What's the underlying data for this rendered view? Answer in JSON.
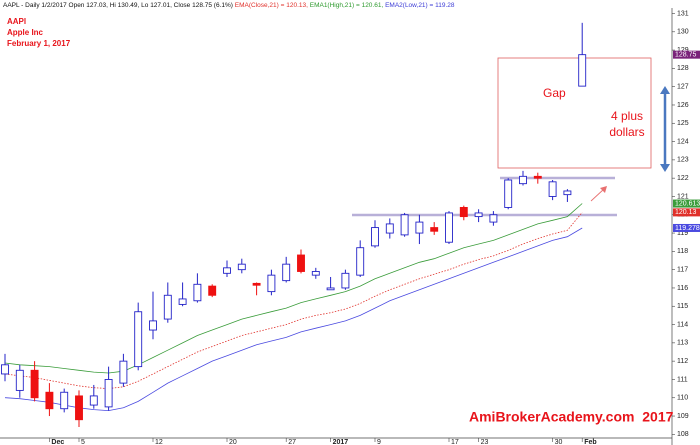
{
  "chart_data": {
    "type": "candlestick",
    "header": [
      {
        "text": "AAPL - Daily 1/2/2017 Open 127.03, Hi 130.49, Lo 127.01, Close 128.75 (6.1%) ",
        "color": "#111111"
      },
      {
        "text": "EMA(Close,21) = 120.13, ",
        "color": "#e0302a"
      },
      {
        "text": "EMA1(High,21) = 120.61, ",
        "color": "#2e9a2e"
      },
      {
        "text": "EMA2(Low,21) = 119.28",
        "color": "#3b3bd6"
      }
    ],
    "annotations": {
      "symbol": "AAPl",
      "company": "Apple Inc",
      "date": "February 1, 2017",
      "gap": "Gap",
      "gap_size": [
        "4 plus",
        "dollars"
      ],
      "watermark": "AmiBrokerAcademy.com  2017"
    },
    "categories": [
      null,
      null,
      null,
      "Dec",
      null,
      "5",
      null,
      null,
      null,
      null,
      "12",
      null,
      null,
      null,
      null,
      "20",
      null,
      null,
      null,
      "27",
      null,
      null,
      "2017",
      null,
      null,
      "9",
      null,
      null,
      null,
      null,
      "17",
      null,
      "23",
      null,
      null,
      null,
      null,
      "30",
      null,
      "Feb"
    ],
    "open": [
      111.3,
      110.4,
      111.5,
      110.3,
      109.4,
      110.1,
      109.6,
      109.5,
      110.8,
      111.7,
      113.7,
      114.3,
      115.1,
      115.3,
      116.1,
      116.8,
      117.0,
      116.25,
      115.8,
      116.4,
      117.8,
      116.7,
      115.9,
      116.0,
      116.7,
      118.3,
      119.0,
      118.9,
      119.0,
      119.3,
      118.5,
      120.4,
      119.9,
      119.6,
      120.4,
      121.7,
      122.1,
      121.0,
      121.1,
      127.03
    ],
    "high": [
      112.4,
      111.8,
      112.0,
      110.8,
      110.5,
      110.4,
      110.7,
      111.7,
      112.4,
      115.2,
      115.8,
      116.3,
      116.3,
      116.8,
      116.2,
      117.5,
      117.6,
      116.3,
      117.0,
      117.7,
      118.1,
      117.1,
      116.6,
      117.0,
      118.6,
      119.7,
      119.8,
      120.1,
      120.0,
      119.6,
      120.2,
      120.5,
      120.3,
      120.2,
      122.0,
      122.4,
      122.3,
      121.9,
      121.4,
      130.49
    ],
    "low": [
      110.9,
      110.0,
      109.8,
      109.0,
      109.2,
      108.4,
      109.4,
      109.3,
      110.6,
      111.5,
      113.2,
      114.1,
      115.0,
      115.2,
      115.5,
      116.6,
      116.8,
      115.6,
      115.6,
      116.3,
      116.8,
      116.5,
      115.9,
      115.9,
      116.6,
      118.2,
      118.7,
      118.8,
      118.4,
      118.9,
      118.4,
      119.7,
      119.6,
      119.4,
      120.3,
      121.6,
      121.7,
      120.8,
      120.7,
      127.01
    ],
    "close": [
      111.8,
      111.5,
      110.0,
      109.4,
      110.3,
      108.8,
      110.1,
      111.0,
      112.0,
      114.7,
      114.2,
      115.6,
      115.4,
      116.2,
      115.6,
      117.1,
      117.3,
      116.15,
      116.7,
      117.3,
      116.9,
      116.9,
      116.0,
      116.8,
      118.2,
      119.3,
      119.5,
      120.0,
      119.6,
      119.1,
      120.1,
      119.9,
      120.1,
      120.0,
      121.9,
      122.1,
      122.0,
      121.8,
      121.3,
      128.75
    ],
    "up_color": "#2323c8",
    "down_color": "#ee1111",
    "last_color": "#7a237a",
    "series": [
      {
        "name": "EMA1(High,21)",
        "color": "#3a9c3a",
        "dashed": false,
        "values": [
          111.9,
          111.8,
          111.75,
          111.7,
          111.6,
          111.5,
          111.4,
          111.35,
          111.45,
          111.8,
          112.2,
          112.6,
          113.0,
          113.4,
          113.7,
          114.0,
          114.3,
          114.5,
          114.7,
          114.9,
          115.2,
          115.4,
          115.6,
          115.8,
          116.1,
          116.5,
          116.8,
          117.1,
          117.4,
          117.6,
          117.9,
          118.2,
          118.4,
          118.6,
          118.9,
          119.2,
          119.5,
          119.7,
          119.9,
          120.613
        ]
      },
      {
        "name": "EMA(Close,21)",
        "color": "#e0302a",
        "dashed": true,
        "values": [
          111.3,
          111.2,
          111.1,
          110.95,
          110.8,
          110.65,
          110.55,
          110.5,
          110.6,
          110.9,
          111.3,
          111.7,
          112.1,
          112.5,
          112.8,
          113.1,
          113.4,
          113.6,
          113.8,
          114.0,
          114.3,
          114.5,
          114.65,
          114.85,
          115.15,
          115.55,
          115.9,
          116.2,
          116.5,
          116.75,
          117.0,
          117.3,
          117.55,
          117.75,
          118.05,
          118.4,
          118.7,
          118.95,
          119.15,
          120.13
        ]
      },
      {
        "name": "EMA2(Low,21)",
        "color": "#4a4ae0",
        "dashed": false,
        "values": [
          110.0,
          109.95,
          109.85,
          109.75,
          109.6,
          109.45,
          109.35,
          109.3,
          109.45,
          109.8,
          110.3,
          110.8,
          111.2,
          111.6,
          112.0,
          112.3,
          112.6,
          112.9,
          113.1,
          113.3,
          113.6,
          113.8,
          114.0,
          114.2,
          114.5,
          114.9,
          115.3,
          115.6,
          115.9,
          116.2,
          116.5,
          116.8,
          117.1,
          117.4,
          117.7,
          118.0,
          118.3,
          118.6,
          118.8,
          119.278
        ]
      }
    ],
    "ylim": [
      107.8,
      131.3
    ],
    "yticks": [
      108,
      109,
      110,
      111,
      112,
      113,
      114,
      115,
      116,
      117,
      118,
      119,
      120,
      121,
      122,
      123,
      124,
      125,
      126,
      127,
      128,
      129,
      130,
      131
    ]
  }
}
